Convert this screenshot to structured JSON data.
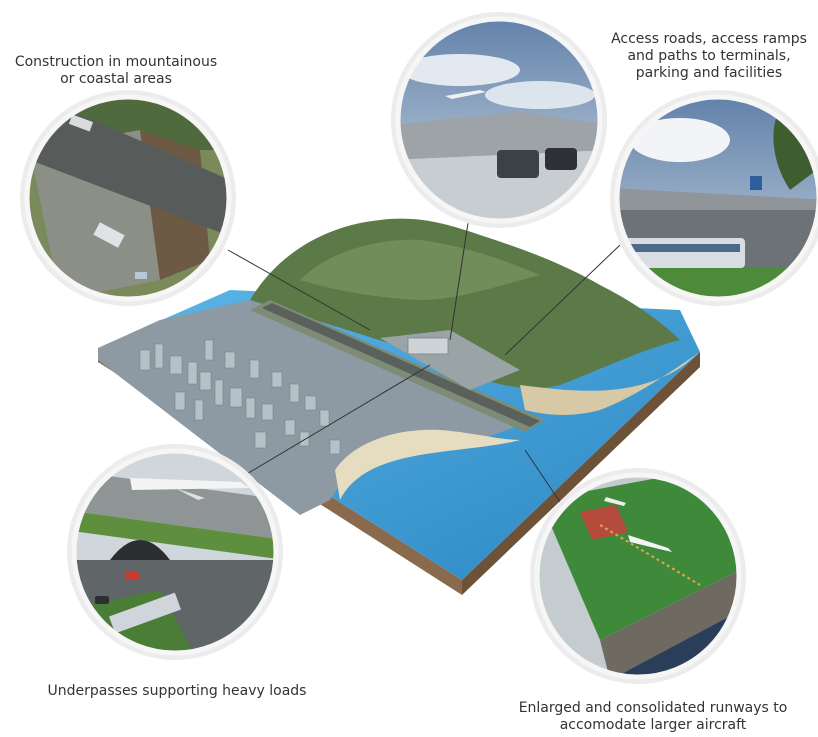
{
  "callouts": {
    "mountain": {
      "line1": "Construction in mountainous",
      "line2": "or coastal areas"
    },
    "roads": {
      "line1": "Access roads, access ramps",
      "line2": "and paths to terminals,",
      "line3": "parking and facilities"
    },
    "underpass": {
      "line1": "Underpasses supporting heavy loads"
    },
    "runway": {
      "line1": "Enlarged and consolidated runways to",
      "line2": "accomodate larger aircraft"
    }
  },
  "colors": {
    "sea": "#3d9fd6",
    "grass": "#4f8a3c",
    "forest": "#5f7a4a",
    "city": "#9aa5ad",
    "runway": "#6f7a70",
    "soil": "#8a6a4c",
    "leader": "#333333",
    "ring": "#f2f2f2"
  }
}
